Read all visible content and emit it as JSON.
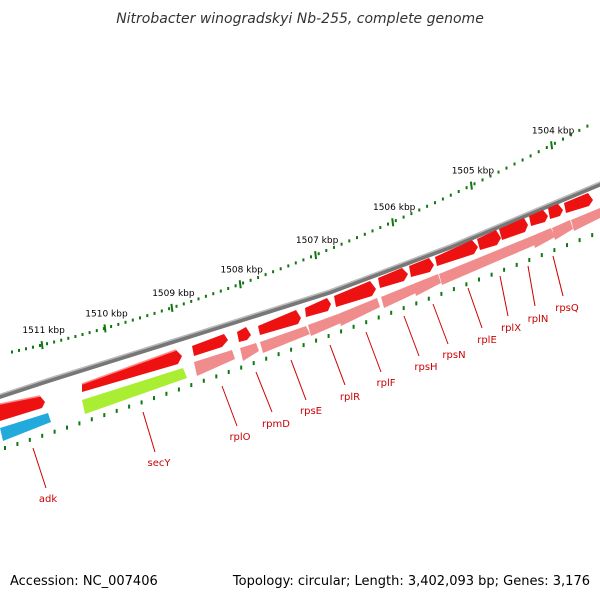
{
  "title": "Nitrobacter winogradskyi Nb-255, complete genome",
  "footer": {
    "accession": "Accession: NC_007406",
    "topology": "Topology: circular; Length: 3,402,093 bp; Genes: 3,176"
  },
  "scale": {
    "unit": "kbp",
    "ticks": [
      "1504 kbp",
      "1505 kbp",
      "1506 kbp",
      "1507 kbp",
      "1508 kbp",
      "1509 kbp",
      "1510 kbp",
      "1511 kbp"
    ]
  },
  "colors": {
    "backbone": "#888888",
    "gene_red": "#ee1111",
    "gene_pink": "#f08c8c",
    "gene_lime": "#aaee33",
    "gene_blue": "#22aadd",
    "label": "#cc0000",
    "tick_green": "#117711"
  },
  "genes": [
    {
      "name": "adk"
    },
    {
      "name": "secY"
    },
    {
      "name": "rplO"
    },
    {
      "name": "rpmD"
    },
    {
      "name": "rpsE"
    },
    {
      "name": "rplR"
    },
    {
      "name": "rplF"
    },
    {
      "name": "rpsH"
    },
    {
      "name": "rpsN"
    },
    {
      "name": "rplE"
    },
    {
      "name": "rplX"
    },
    {
      "name": "rplN"
    },
    {
      "name": "rpsQ"
    }
  ]
}
